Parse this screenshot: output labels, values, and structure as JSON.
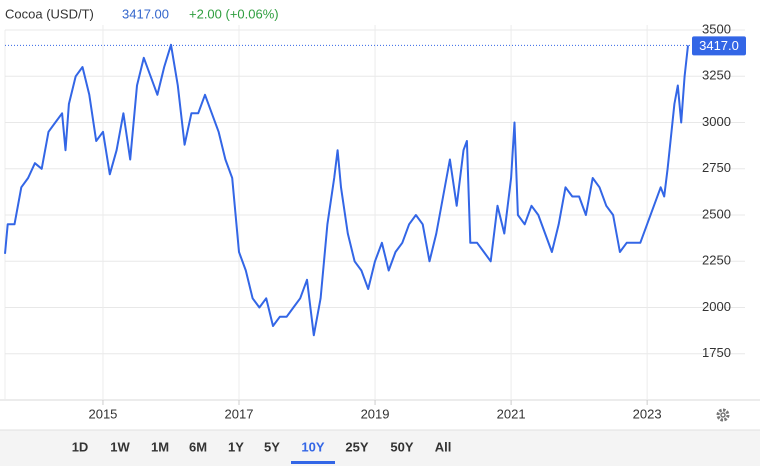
{
  "header": {
    "title": "Cocoa (USD/T)",
    "price": "3417.00",
    "change": "+2.00 (+0.06%)"
  },
  "chart_data": {
    "type": "line",
    "x": [
      2013.56,
      2013.6,
      2013.7,
      2013.8,
      2013.9,
      2014.0,
      2014.1,
      2014.2,
      2014.3,
      2014.4,
      2014.45,
      2014.5,
      2014.6,
      2014.7,
      2014.8,
      2014.9,
      2015.0,
      2015.1,
      2015.2,
      2015.3,
      2015.4,
      2015.5,
      2015.6,
      2015.7,
      2015.8,
      2015.9,
      2016.0,
      2016.1,
      2016.2,
      2016.3,
      2016.4,
      2016.5,
      2016.6,
      2016.7,
      2016.8,
      2016.9,
      2017.0,
      2017.1,
      2017.2,
      2017.3,
      2017.4,
      2017.5,
      2017.6,
      2017.7,
      2017.8,
      2017.9,
      2018.0,
      2018.1,
      2018.2,
      2018.3,
      2018.4,
      2018.45,
      2018.5,
      2018.6,
      2018.7,
      2018.8,
      2018.9,
      2019.0,
      2019.1,
      2019.2,
      2019.3,
      2019.4,
      2019.5,
      2019.6,
      2019.7,
      2019.8,
      2019.9,
      2020.0,
      2020.1,
      2020.2,
      2020.3,
      2020.35,
      2020.4,
      2020.5,
      2020.6,
      2020.7,
      2020.8,
      2020.9,
      2021.0,
      2021.05,
      2021.1,
      2021.2,
      2021.3,
      2021.4,
      2021.5,
      2021.6,
      2021.7,
      2021.8,
      2021.9,
      2022.0,
      2022.1,
      2022.2,
      2022.3,
      2022.4,
      2022.5,
      2022.6,
      2022.7,
      2022.8,
      2022.9,
      2023.0,
      2023.1,
      2023.2,
      2023.25,
      2023.3,
      2023.4,
      2023.45,
      2023.5,
      2023.55,
      2023.6
    ],
    "series": [
      {
        "name": "Cocoa",
        "color": "#3366e6",
        "values": [
          2290,
          2450,
          2450,
          2650,
          2700,
          2780,
          2750,
          2950,
          3000,
          3050,
          2850,
          3100,
          3250,
          3300,
          3150,
          2900,
          2950,
          2720,
          2850,
          3050,
          2800,
          3200,
          3350,
          3250,
          3150,
          3300,
          3420,
          3200,
          2880,
          3050,
          3050,
          3150,
          3050,
          2950,
          2800,
          2700,
          2300,
          2200,
          2050,
          2000,
          2050,
          1900,
          1950,
          1950,
          2000,
          2050,
          2150,
          1850,
          2050,
          2450,
          2700,
          2850,
          2650,
          2400,
          2250,
          2200,
          2100,
          2250,
          2350,
          2200,
          2300,
          2350,
          2450,
          2500,
          2450,
          2250,
          2400,
          2600,
          2800,
          2550,
          2850,
          2900,
          2350,
          2350,
          2300,
          2250,
          2550,
          2400,
          2700,
          3000,
          2500,
          2450,
          2550,
          2500,
          2400,
          2300,
          2450,
          2650,
          2600,
          2600,
          2500,
          2700,
          2650,
          2550,
          2500,
          2300,
          2350,
          2350,
          2350,
          2450,
          2550,
          2650,
          2600,
          2750,
          3100,
          3200,
          3000,
          3250,
          3417
        ]
      }
    ],
    "xlim": [
      2013.56,
      2023.63
    ],
    "xticks": [
      2015,
      2017,
      2019,
      2021,
      2023
    ],
    "ylim": [
      1500,
      3500
    ],
    "yticks": [
      1750,
      2000,
      2250,
      2500,
      2750,
      3000,
      3250,
      3500
    ],
    "grid": true,
    "last_price": {
      "value": 3417,
      "label": "3417.0"
    }
  },
  "ranges": [
    "1D",
    "1W",
    "1M",
    "6M",
    "1Y",
    "5Y",
    "10Y",
    "25Y",
    "50Y",
    "All"
  ],
  "selected_range": "10Y"
}
